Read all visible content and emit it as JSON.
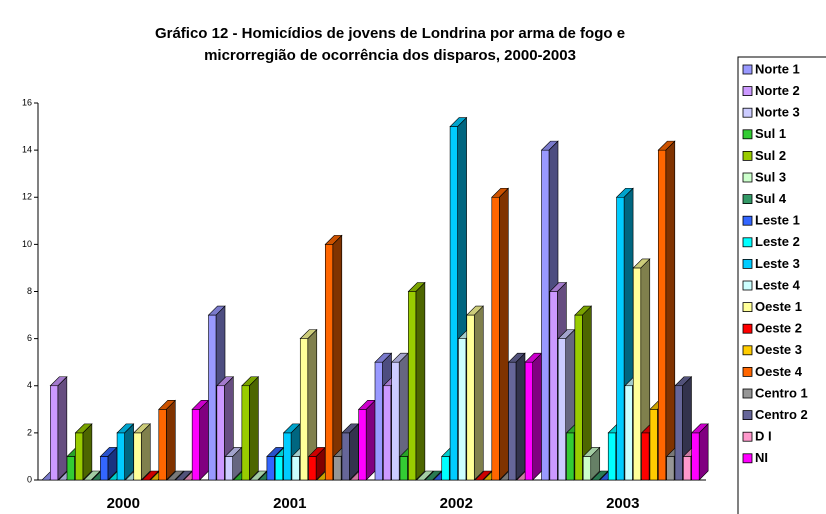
{
  "chart_data": {
    "type": "bar3d",
    "title": [
      "Gráfico 12 - Homicídios de jovens de Londrina por arma de fogo e",
      "microrregião de ocorrência dos disparos, 2000-2003"
    ],
    "categories": [
      "2000",
      "2001",
      "2002",
      "2003"
    ],
    "ylim": [
      0,
      16
    ],
    "yticks": [
      0,
      2,
      4,
      6,
      8,
      10,
      12,
      14,
      16
    ],
    "legend": "right",
    "series": [
      {
        "name": "Norte 1",
        "color": "#9999ff",
        "values": [
          0,
          7,
          5,
          14
        ]
      },
      {
        "name": "Norte 2",
        "color": "#cc99ff",
        "values": [
          4,
          4,
          4,
          8
        ]
      },
      {
        "name": "Norte 3",
        "color": "#ccccff",
        "values": [
          0,
          1,
          5,
          6
        ]
      },
      {
        "name": "Sul 1",
        "color": "#33cc33",
        "values": [
          1,
          0,
          1,
          2
        ]
      },
      {
        "name": "Sul 2",
        "color": "#99cc00",
        "values": [
          2,
          4,
          8,
          7
        ]
      },
      {
        "name": "Sul 3",
        "color": "#ccffcc",
        "values": [
          0,
          0,
          0,
          1
        ]
      },
      {
        "name": "Sul 4",
        "color": "#339966",
        "values": [
          0,
          0,
          0,
          0
        ]
      },
      {
        "name": "Leste 1",
        "color": "#3366ff",
        "values": [
          1,
          1,
          0,
          0
        ]
      },
      {
        "name": "Leste 2",
        "color": "#00ffff",
        "values": [
          0,
          1,
          1,
          2
        ]
      },
      {
        "name": "Leste 3",
        "color": "#00ccff",
        "values": [
          2,
          2,
          15,
          12
        ]
      },
      {
        "name": "Leste 4",
        "color": "#ccffff",
        "values": [
          0,
          1,
          6,
          4
        ]
      },
      {
        "name": "Oeste 1",
        "color": "#ffff99",
        "values": [
          2,
          6,
          7,
          9
        ]
      },
      {
        "name": "Oeste 2",
        "color": "#ff0000",
        "values": [
          0,
          1,
          0,
          2
        ]
      },
      {
        "name": "Oeste 3",
        "color": "#ffcc00",
        "values": [
          0,
          0,
          0,
          3
        ]
      },
      {
        "name": "Oeste 4",
        "color": "#ff6600",
        "values": [
          3,
          10,
          12,
          14
        ]
      },
      {
        "name": "Centro 1",
        "color": "#969696",
        "values": [
          0,
          1,
          0,
          1
        ]
      },
      {
        "name": "Centro 2",
        "color": "#666699",
        "values": [
          0,
          2,
          5,
          4
        ]
      },
      {
        "name": "D I",
        "color": "#ff99cc",
        "values": [
          0,
          0,
          0,
          1
        ]
      },
      {
        "name": "NI",
        "color": "#ff00ff",
        "values": [
          3,
          3,
          5,
          2
        ]
      }
    ]
  }
}
